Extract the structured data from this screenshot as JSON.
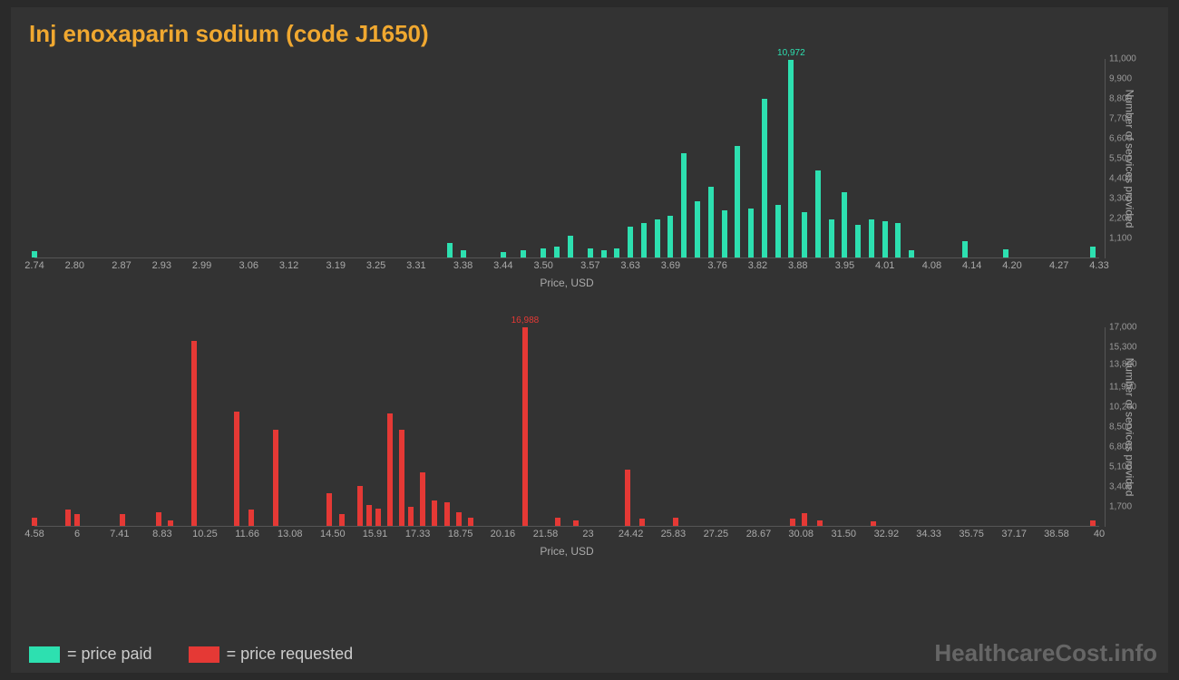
{
  "background_outer": "#2a2a2a",
  "background_inner": "#333333",
  "title": "Inj enoxaparin sodium (code J1650)",
  "title_color": "#f0a830",
  "title_fontsize": 26,
  "tick_color": "#aaaaaa",
  "axis_line_color": "#555555",
  "watermark": "HealthcareCost.info",
  "watermark_color": "#666666",
  "legend": {
    "paid": {
      "text": "= price paid",
      "color": "#2de0b0"
    },
    "requested": {
      "text": "= price requested",
      "color": "#e53935"
    }
  },
  "chart1": {
    "type": "histogram",
    "bar_color": "#2de0b0",
    "x_label": "Price, USD",
    "y_label": "Number of services provided",
    "x_min": 2.74,
    "x_max": 4.33,
    "x_ticks": [
      "2.74",
      "2.80",
      "2.87",
      "2.93",
      "2.99",
      "3.06",
      "3.12",
      "3.19",
      "3.25",
      "3.31",
      "3.38",
      "3.44",
      "3.50",
      "3.57",
      "3.63",
      "3.69",
      "3.76",
      "3.82",
      "3.88",
      "3.95",
      "4.01",
      "4.08",
      "4.14",
      "4.20",
      "4.27",
      "4.33"
    ],
    "y_max": 11000,
    "y_ticks": [
      1100,
      2200,
      3300,
      4400,
      5500,
      6600,
      7700,
      8800,
      9900,
      11000
    ],
    "max_label": "10,972",
    "bars": [
      {
        "x": 2.74,
        "y": 350
      },
      {
        "x": 3.36,
        "y": 800
      },
      {
        "x": 3.38,
        "y": 400
      },
      {
        "x": 3.44,
        "y": 300
      },
      {
        "x": 3.47,
        "y": 400
      },
      {
        "x": 3.5,
        "y": 500
      },
      {
        "x": 3.52,
        "y": 600
      },
      {
        "x": 3.54,
        "y": 1200
      },
      {
        "x": 3.57,
        "y": 500
      },
      {
        "x": 3.59,
        "y": 400
      },
      {
        "x": 3.61,
        "y": 500
      },
      {
        "x": 3.63,
        "y": 1700
      },
      {
        "x": 3.65,
        "y": 1900
      },
      {
        "x": 3.67,
        "y": 2100
      },
      {
        "x": 3.69,
        "y": 2300
      },
      {
        "x": 3.71,
        "y": 5800
      },
      {
        "x": 3.73,
        "y": 3100
      },
      {
        "x": 3.75,
        "y": 3900
      },
      {
        "x": 3.77,
        "y": 2600
      },
      {
        "x": 3.79,
        "y": 6200
      },
      {
        "x": 3.81,
        "y": 2700
      },
      {
        "x": 3.83,
        "y": 8800
      },
      {
        "x": 3.85,
        "y": 2900
      },
      {
        "x": 3.87,
        "y": 10972,
        "label": "10,972"
      },
      {
        "x": 3.89,
        "y": 2500
      },
      {
        "x": 3.91,
        "y": 4800
      },
      {
        "x": 3.93,
        "y": 2100
      },
      {
        "x": 3.95,
        "y": 3600
      },
      {
        "x": 3.97,
        "y": 1800
      },
      {
        "x": 3.99,
        "y": 2100
      },
      {
        "x": 4.01,
        "y": 2000
      },
      {
        "x": 4.03,
        "y": 1900
      },
      {
        "x": 4.05,
        "y": 400
      },
      {
        "x": 4.13,
        "y": 900
      },
      {
        "x": 4.19,
        "y": 450
      },
      {
        "x": 4.32,
        "y": 600
      }
    ]
  },
  "chart2": {
    "type": "histogram",
    "bar_color": "#e53935",
    "x_label": "Price, USD",
    "y_label": "Number of services provided",
    "x_min": 4.58,
    "x_max": 40,
    "x_ticks": [
      "4.58",
      "6",
      "7.41",
      "8.83",
      "10.25",
      "11.66",
      "13.08",
      "14.50",
      "15.91",
      "17.33",
      "18.75",
      "20.16",
      "21.58",
      "23",
      "24.42",
      "25.83",
      "27.25",
      "28.67",
      "30.08",
      "31.50",
      "32.92",
      "34.33",
      "35.75",
      "37.17",
      "38.58",
      "40"
    ],
    "y_max": 17000,
    "y_ticks": [
      1700,
      3400,
      5100,
      6800,
      8500,
      10200,
      11900,
      13800,
      15300,
      17000
    ],
    "max_label": "16,988",
    "bars": [
      {
        "x": 4.58,
        "y": 700
      },
      {
        "x": 5.7,
        "y": 1400
      },
      {
        "x": 6.0,
        "y": 1000
      },
      {
        "x": 7.5,
        "y": 1000
      },
      {
        "x": 8.7,
        "y": 1200
      },
      {
        "x": 9.1,
        "y": 500
      },
      {
        "x": 9.9,
        "y": 15800
      },
      {
        "x": 11.3,
        "y": 9800
      },
      {
        "x": 11.8,
        "y": 1400
      },
      {
        "x": 12.6,
        "y": 8200
      },
      {
        "x": 14.4,
        "y": 2800
      },
      {
        "x": 14.8,
        "y": 1000
      },
      {
        "x": 15.4,
        "y": 3400
      },
      {
        "x": 15.7,
        "y": 1800
      },
      {
        "x": 16.0,
        "y": 1500
      },
      {
        "x": 16.4,
        "y": 9600
      },
      {
        "x": 16.8,
        "y": 8200
      },
      {
        "x": 17.1,
        "y": 1600
      },
      {
        "x": 17.5,
        "y": 4600
      },
      {
        "x": 17.9,
        "y": 2200
      },
      {
        "x": 18.3,
        "y": 2000
      },
      {
        "x": 18.7,
        "y": 1200
      },
      {
        "x": 19.1,
        "y": 700
      },
      {
        "x": 20.9,
        "y": 16988,
        "label": "16,988"
      },
      {
        "x": 22.0,
        "y": 700
      },
      {
        "x": 22.6,
        "y": 500
      },
      {
        "x": 24.3,
        "y": 4800
      },
      {
        "x": 24.8,
        "y": 600
      },
      {
        "x": 25.9,
        "y": 700
      },
      {
        "x": 29.8,
        "y": 600
      },
      {
        "x": 30.2,
        "y": 1100
      },
      {
        "x": 30.7,
        "y": 500
      },
      {
        "x": 32.5,
        "y": 400
      },
      {
        "x": 39.8,
        "y": 500
      }
    ]
  }
}
